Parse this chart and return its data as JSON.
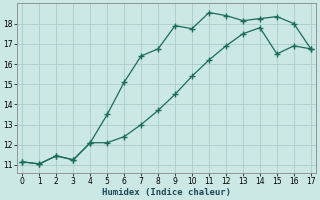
{
  "xlabel": "Humidex (Indice chaleur)",
  "background_color": "#cce8e4",
  "line_color": "#1a6b5a",
  "grid_color": "#aaccc8",
  "line1_x": [
    0,
    1,
    2,
    3,
    4,
    5,
    6,
    7,
    8,
    9,
    10,
    11,
    12,
    13,
    14,
    15,
    16,
    17
  ],
  "line1_y": [
    11.15,
    11.05,
    11.45,
    11.25,
    12.1,
    13.5,
    15.1,
    16.4,
    16.75,
    17.9,
    17.75,
    18.55,
    18.4,
    18.15,
    18.25,
    18.35,
    18.0,
    16.75
  ],
  "line2_x": [
    0,
    1,
    2,
    3,
    4,
    5,
    6,
    7,
    8,
    9,
    10,
    11,
    12,
    13,
    14,
    15,
    16,
    17
  ],
  "line2_y": [
    11.15,
    11.05,
    11.45,
    11.25,
    12.1,
    12.1,
    12.4,
    13.0,
    13.7,
    14.5,
    15.4,
    16.2,
    16.9,
    17.5,
    17.8,
    16.5,
    16.9,
    16.75
  ],
  "xlim": [
    -0.3,
    17.3
  ],
  "ylim": [
    10.6,
    19.0
  ],
  "xticks": [
    0,
    1,
    2,
    3,
    4,
    5,
    6,
    7,
    8,
    9,
    10,
    11,
    12,
    13,
    14,
    15,
    16,
    17
  ],
  "yticks": [
    11,
    12,
    13,
    14,
    15,
    16,
    17,
    18
  ]
}
